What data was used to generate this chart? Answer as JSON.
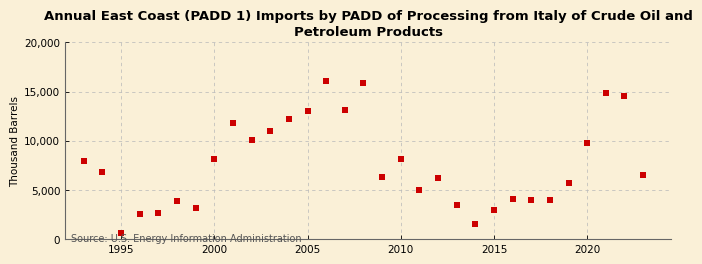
{
  "title": "Annual East Coast (PADD 1) Imports by PADD of Processing from Italy of Crude Oil and\nPetroleum Products",
  "ylabel": "Thousand Barrels",
  "source": "Source: U.S. Energy Information Administration",
  "years": [
    1993,
    1994,
    1995,
    1996,
    1997,
    1998,
    1999,
    2000,
    2001,
    2002,
    2003,
    2004,
    2005,
    2006,
    2007,
    2008,
    2009,
    2010,
    2011,
    2012,
    2013,
    2014,
    2015,
    2016,
    2017,
    2018,
    2019,
    2020,
    2021,
    2022,
    2023
  ],
  "values": [
    7900,
    6800,
    600,
    2600,
    2700,
    3900,
    3200,
    8100,
    11800,
    10100,
    11000,
    12200,
    13000,
    16100,
    13100,
    15900,
    6300,
    8100,
    5000,
    6200,
    3500,
    1500,
    3000,
    4100,
    4000,
    4000,
    5700,
    9800,
    14900,
    14500,
    6500
  ],
  "marker_color": "#cc0000",
  "marker_size": 18,
  "background_color": "#faf0d7",
  "grid_color": "#bbbbbb",
  "ylim": [
    0,
    20000
  ],
  "yticks": [
    0,
    5000,
    10000,
    15000,
    20000
  ],
  "xlim": [
    1992.0,
    2024.5
  ],
  "xticks": [
    1995,
    2000,
    2005,
    2010,
    2015,
    2020
  ],
  "title_fontsize": 9.5,
  "tick_fontsize": 7.5,
  "ylabel_fontsize": 7.5,
  "source_fontsize": 7
}
